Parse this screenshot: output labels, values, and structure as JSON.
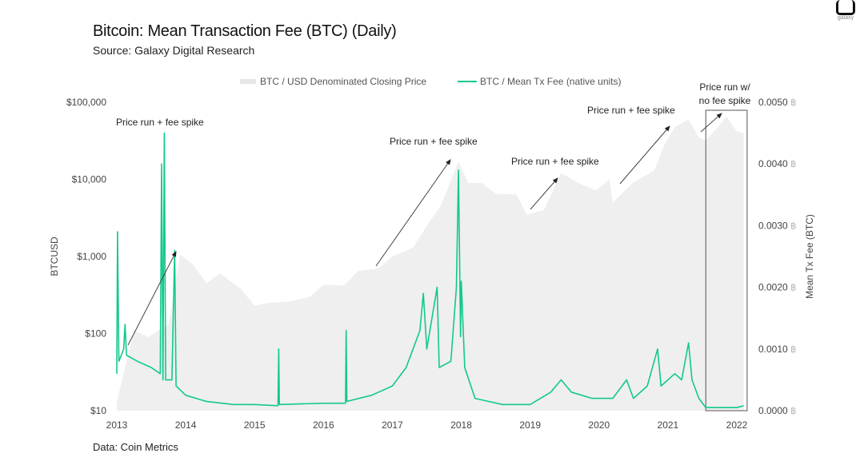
{
  "logo_text": "galaxy",
  "title": "Bitcoin: Mean Transaction Fee (BTC) (Daily)",
  "subtitle": "Source: Galaxy Digital Research",
  "footer": "Data: Coin Metrics",
  "colors": {
    "price": "#efefef",
    "fee": "#12c98a",
    "text": "#333",
    "box": "#555"
  },
  "chart_data": {
    "type": "area+line",
    "title": "Bitcoin: Mean Transaction Fee (BTC) (Daily)",
    "legend": {
      "placement": "top",
      "entries": [
        "BTC / USD Denominated Closing Price",
        "BTC / Mean Tx Fee (native units)"
      ]
    },
    "x_ticks": [
      "2013",
      "2014",
      "2015",
      "2016",
      "2017",
      "2018",
      "2019",
      "2020",
      "2021",
      "2022"
    ],
    "xlim": [
      2013,
      2022.2
    ],
    "left_axis": {
      "label": "BTCUSD",
      "scale": "log",
      "ylim": [
        10,
        100000
      ],
      "ticks": [
        "$10",
        "$100",
        "$1,000",
        "$10,000",
        "$100,000"
      ]
    },
    "right_axis": {
      "label": "Mean Tx Fee (BTC)",
      "ylim": [
        0,
        0.005
      ],
      "ticks": [
        "0.0000",
        "0.0010",
        "0.0020",
        "0.0030",
        "0.0040",
        "0.0050"
      ],
      "unit": "฿"
    },
    "series": [
      {
        "name": "BTC / USD Denominated Closing Price",
        "axis": "left",
        "type": "area",
        "points": [
          [
            2013.0,
            13
          ],
          [
            2013.25,
            110
          ],
          [
            2013.45,
            90
          ],
          [
            2013.75,
            130
          ],
          [
            2013.92,
            1050
          ],
          [
            2014.1,
            800
          ],
          [
            2014.3,
            450
          ],
          [
            2014.5,
            600
          ],
          [
            2014.8,
            380
          ],
          [
            2015.0,
            230
          ],
          [
            2015.2,
            250
          ],
          [
            2015.5,
            260
          ],
          [
            2015.8,
            300
          ],
          [
            2016.0,
            430
          ],
          [
            2016.3,
            420
          ],
          [
            2016.5,
            650
          ],
          [
            2016.8,
            700
          ],
          [
            2017.0,
            1000
          ],
          [
            2017.3,
            1300
          ],
          [
            2017.5,
            2500
          ],
          [
            2017.7,
            4500
          ],
          [
            2017.96,
            17000
          ],
          [
            2018.1,
            9000
          ],
          [
            2018.3,
            9000
          ],
          [
            2018.5,
            6500
          ],
          [
            2018.8,
            6400
          ],
          [
            2018.95,
            3500
          ],
          [
            2019.2,
            4000
          ],
          [
            2019.45,
            12000
          ],
          [
            2019.7,
            9000
          ],
          [
            2019.95,
            7200
          ],
          [
            2020.15,
            10000
          ],
          [
            2020.2,
            5000
          ],
          [
            2020.5,
            9200
          ],
          [
            2020.8,
            13000
          ],
          [
            2020.95,
            28000
          ],
          [
            2021.1,
            48000
          ],
          [
            2021.3,
            60000
          ],
          [
            2021.45,
            35000
          ],
          [
            2021.55,
            32000
          ],
          [
            2021.7,
            45000
          ],
          [
            2021.85,
            65000
          ],
          [
            2022.0,
            42000
          ],
          [
            2022.1,
            40000
          ]
        ]
      },
      {
        "name": "BTC / Mean Tx Fee (native units)",
        "axis": "right",
        "type": "line",
        "points": [
          [
            2013.0,
            0.0006
          ],
          [
            2013.01,
            0.0029
          ],
          [
            2013.03,
            0.0008
          ],
          [
            2013.1,
            0.001
          ],
          [
            2013.12,
            0.0014
          ],
          [
            2013.14,
            0.0009
          ],
          [
            2013.3,
            0.0008
          ],
          [
            2013.5,
            0.0007
          ],
          [
            2013.63,
            0.0006
          ],
          [
            2013.65,
            0.004
          ],
          [
            2013.67,
            0.0005
          ],
          [
            2013.69,
            0.0045
          ],
          [
            2013.71,
            0.0005
          ],
          [
            2013.8,
            0.0005
          ],
          [
            2013.84,
            0.0026
          ],
          [
            2013.86,
            0.0004
          ],
          [
            2014.0,
            0.00025
          ],
          [
            2014.3,
            0.00015
          ],
          [
            2014.7,
            0.0001
          ],
          [
            2015.0,
            0.0001
          ],
          [
            2015.34,
            8e-05
          ],
          [
            2015.35,
            0.001
          ],
          [
            2015.36,
            0.0001
          ],
          [
            2016.0,
            0.00012
          ],
          [
            2016.32,
            0.00012
          ],
          [
            2016.33,
            0.0013
          ],
          [
            2016.34,
            0.00015
          ],
          [
            2016.7,
            0.00025
          ],
          [
            2017.0,
            0.0004
          ],
          [
            2017.2,
            0.0007
          ],
          [
            2017.4,
            0.0013
          ],
          [
            2017.45,
            0.0019
          ],
          [
            2017.5,
            0.001
          ],
          [
            2017.65,
            0.002
          ],
          [
            2017.68,
            0.0007
          ],
          [
            2017.85,
            0.0008
          ],
          [
            2017.93,
            0.002
          ],
          [
            2017.96,
            0.0039
          ],
          [
            2017.99,
            0.0012
          ],
          [
            2018.0,
            0.0021
          ],
          [
            2018.05,
            0.0007
          ],
          [
            2018.2,
            0.0002
          ],
          [
            2018.6,
            0.0001
          ],
          [
            2019.0,
            0.0001
          ],
          [
            2019.3,
            0.0003
          ],
          [
            2019.45,
            0.0005
          ],
          [
            2019.6,
            0.0003
          ],
          [
            2019.9,
            0.0002
          ],
          [
            2020.2,
            0.0002
          ],
          [
            2020.4,
            0.0005
          ],
          [
            2020.5,
            0.0002
          ],
          [
            2020.7,
            0.0004
          ],
          [
            2020.85,
            0.001
          ],
          [
            2020.9,
            0.0004
          ],
          [
            2021.1,
            0.0006
          ],
          [
            2021.2,
            0.0005
          ],
          [
            2021.3,
            0.0011
          ],
          [
            2021.35,
            0.0005
          ],
          [
            2021.45,
            0.0002
          ],
          [
            2021.55,
            5e-05
          ],
          [
            2022.0,
            5e-05
          ],
          [
            2022.1,
            8e-05
          ]
        ]
      }
    ],
    "annotations": [
      {
        "text": "Price run + fee spike"
      },
      {
        "text": "Price run + fee spike"
      },
      {
        "text": "Price run + fee spike"
      },
      {
        "text": "Price run + fee spike"
      },
      {
        "text": "Price run w/ no fee spike",
        "lines": [
          "Price run w/",
          "no fee spike"
        ]
      }
    ]
  }
}
